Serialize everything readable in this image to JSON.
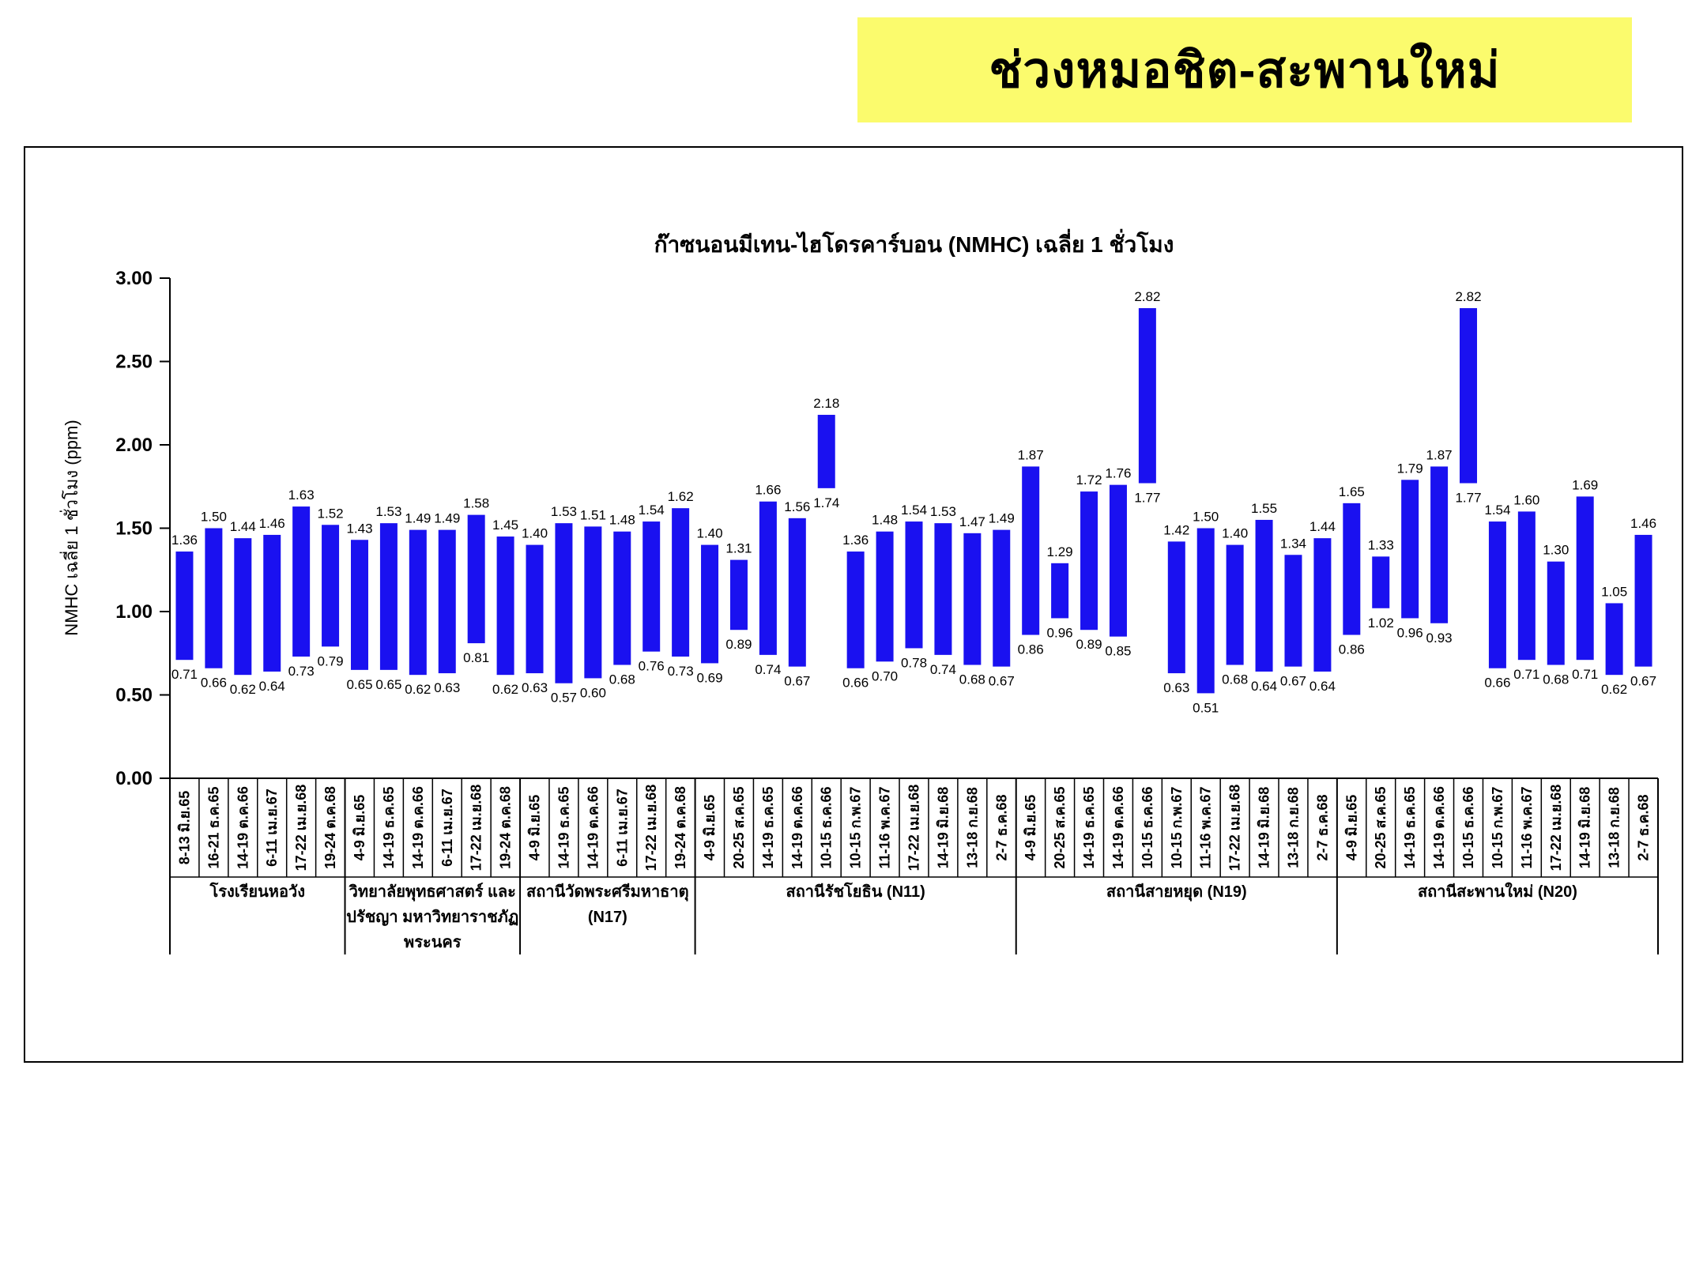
{
  "banner": {
    "title": "ช่วงหมอชิต-สะพานใหม่",
    "bg_color": "#fbfb6d"
  },
  "chart_data": {
    "type": "bar",
    "subtype": "floating-range-bars",
    "title": "ก๊าซนอนมีเทน-ไฮโดรคาร์บอน (NMHC) เฉลี่ย 1 ชั่วโมง",
    "ylabel": "NMHC เฉลี่ย 1 ชั่วโมง (ppm)",
    "xlabel": "",
    "ylim": [
      0.0,
      3.0
    ],
    "ytick_values": [
      0.0,
      0.5,
      1.0,
      1.5,
      2.0,
      2.5,
      3.0
    ],
    "ytick_labels": [
      "0.00",
      "0.50",
      "1.00",
      "1.50",
      "2.00",
      "2.50",
      "3.00"
    ],
    "grid": false,
    "legend_position": "none",
    "bar_color": "#1a11f0",
    "axis_color": "#000000",
    "groups": [
      {
        "name": "โรงเรียนหอวัง",
        "name_lines": [
          "โรงเรียนหอวัง"
        ],
        "bars": [
          {
            "period": "8-13 มิ.ย.65",
            "min": 0.71,
            "max": 1.36
          },
          {
            "period": "16-21 ธ.ค.65",
            "min": 0.66,
            "max": 1.5
          },
          {
            "period": "14-19 ต.ค.66",
            "min": 0.62,
            "max": 1.44
          },
          {
            "period": "6-11 เม.ย.67",
            "min": 0.64,
            "max": 1.46
          },
          {
            "period": "17-22 เม.ย.68",
            "min": 0.73,
            "max": 1.63
          },
          {
            "period": "19-24 ต.ค.68",
            "min": 0.79,
            "max": 1.52
          }
        ]
      },
      {
        "name": "วิทยาลัยพุทธศาสตร์ และปรัชญา มหาวิทยาราชภัฏ พระนคร",
        "name_lines": [
          "วิทยาลัยพุทธศาสตร์ และ",
          "ปรัชญา มหาวิทยาราชภัฏ",
          "พระนคร"
        ],
        "bars": [
          {
            "period": "4-9 มิ.ย.65",
            "min": 0.65,
            "max": 1.43
          },
          {
            "period": "14-19 ธ.ค.65",
            "min": 0.65,
            "max": 1.53
          },
          {
            "period": "14-19 ต.ค.66",
            "min": 0.62,
            "max": 1.49
          },
          {
            "period": "6-11 เม.ย.67",
            "min": 0.63,
            "max": 1.49
          },
          {
            "period": "17-22 เม.ย.68",
            "min": 0.81,
            "max": 1.58
          },
          {
            "period": "19-24 ต.ค.68",
            "min": 0.62,
            "max": 1.45
          }
        ]
      },
      {
        "name": "สถานีวัดพระศรีมหาธาตุ (N17)",
        "name_lines": [
          "สถานีวัดพระศรีมหาธาตุ",
          "(N17)"
        ],
        "bars": [
          {
            "period": "4-9 มิ.ย.65",
            "min": 0.63,
            "max": 1.4
          },
          {
            "period": "14-19 ธ.ค.65",
            "min": 0.57,
            "max": 1.53
          },
          {
            "period": "14-19 ต.ค.66",
            "min": 0.6,
            "max": 1.51
          },
          {
            "period": "6-11 เม.ย.67",
            "min": 0.68,
            "max": 1.48
          },
          {
            "period": "17-22 เม.ย.68",
            "min": 0.76,
            "max": 1.54
          },
          {
            "period": "19-24 ต.ค.68",
            "min": 0.73,
            "max": 1.62
          }
        ]
      },
      {
        "name": "สถานีรัชโยธิน (N11)",
        "name_lines": [
          "สถานีรัชโยธิน (N11)"
        ],
        "bars": [
          {
            "period": "4-9 มิ.ย.65",
            "min": 0.69,
            "max": 1.4
          },
          {
            "period": "20-25 ส.ค.65",
            "min": 0.89,
            "max": 1.31
          },
          {
            "period": "14-19 ธ.ค.65",
            "min": 0.74,
            "max": 1.66
          },
          {
            "period": "14-19 ต.ค.66",
            "min": 0.67,
            "max": 1.56
          },
          {
            "period": "10-15 ธ.ค.66",
            "min": 1.74,
            "max": 2.18
          },
          {
            "period": "10-15 ก.พ.67",
            "min": 0.66,
            "max": 1.36
          },
          {
            "period": "11-16 พ.ค.67",
            "min": 0.7,
            "max": 1.48
          },
          {
            "period": "17-22 เม.ย.68",
            "min": 0.78,
            "max": 1.54
          },
          {
            "period": "14-19 มิ.ย.68",
            "min": 0.74,
            "max": 1.53
          },
          {
            "period": "13-18 ก.ย.68",
            "min": 0.68,
            "max": 1.47
          },
          {
            "period": "2-7 ธ.ค.68",
            "min": 0.67,
            "max": 1.49
          }
        ]
      },
      {
        "name": "สถานีสายหยุด (N19)",
        "name_lines": [
          "สถานีสายหยุด (N19)"
        ],
        "bars": [
          {
            "period": "4-9 มิ.ย.65",
            "min": 0.86,
            "max": 1.87
          },
          {
            "period": "20-25 ส.ค.65",
            "min": 0.96,
            "max": 1.29
          },
          {
            "period": "14-19 ธ.ค.65",
            "min": 0.89,
            "max": 1.72
          },
          {
            "period": "14-19 ต.ค.66",
            "min": 0.85,
            "max": 1.76
          },
          {
            "period": "10-15 ธ.ค.66",
            "min": 1.77,
            "max": 2.82
          },
          {
            "period": "10-15 ก.พ.67",
            "min": 0.63,
            "max": 1.42
          },
          {
            "period": "11-16 พ.ค.67",
            "min": 0.51,
            "max": 1.5
          },
          {
            "period": "17-22 เม.ย.68",
            "min": 0.68,
            "max": 1.4
          },
          {
            "period": "14-19 มิ.ย.68",
            "min": 0.64,
            "max": 1.55
          },
          {
            "period": "13-18 ก.ย.68",
            "min": 0.67,
            "max": 1.34
          },
          {
            "period": "2-7 ธ.ค.68",
            "min": 0.64,
            "max": 1.44
          }
        ]
      },
      {
        "name": "สถานีสะพานใหม่ (N20)",
        "name_lines": [
          "สถานีสะพานใหม่ (N20)"
        ],
        "bars": [
          {
            "period": "4-9 มิ.ย.65",
            "min": 0.86,
            "max": 1.65
          },
          {
            "period": "20-25 ส.ค.65",
            "min": 1.02,
            "max": 1.33
          },
          {
            "period": "14-19 ธ.ค.65",
            "min": 0.96,
            "max": 1.79
          },
          {
            "period": "14-19 ต.ค.66",
            "min": 0.93,
            "max": 1.87
          },
          {
            "period": "10-15 ธ.ค.66",
            "min": 1.77,
            "max": 2.82
          },
          {
            "period": "10-15 ก.พ.67",
            "min": 0.66,
            "max": 1.54
          },
          {
            "period": "11-16 พ.ค.67",
            "min": 0.71,
            "max": 1.6
          },
          {
            "period": "17-22 เม.ย.68",
            "min": 0.68,
            "max": 1.3
          },
          {
            "period": "14-19 มิ.ย.68",
            "min": 0.71,
            "max": 1.69
          },
          {
            "period": "13-18 ก.ย.68",
            "min": 0.62,
            "max": 1.05
          },
          {
            "period": "2-7 ธ.ค.68",
            "min": 0.67,
            "max": 1.46
          }
        ]
      }
    ]
  }
}
